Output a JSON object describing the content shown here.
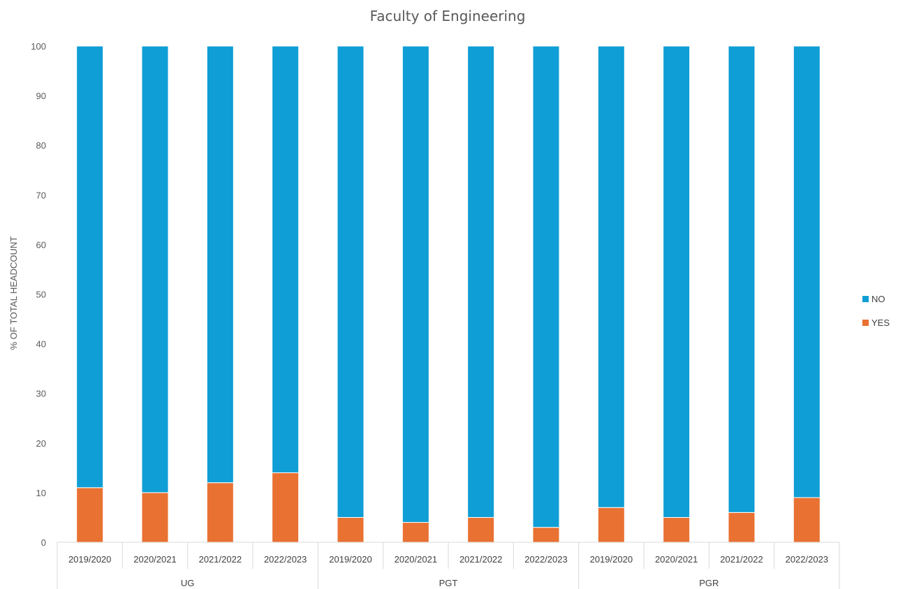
{
  "chart_data": {
    "type": "bar",
    "stacked": true,
    "title": "Faculty of Engineering",
    "xlabel": "",
    "ylabel": "% OF TOTAL HEADCOUNT",
    "ylim": [
      0,
      100
    ],
    "yticks": [
      "0",
      "10",
      "20",
      "30",
      "40",
      "50",
      "60",
      "70",
      "80",
      "90",
      "100"
    ],
    "grid": false,
    "legend_position": "right",
    "groups": [
      {
        "label": "UG",
        "categories": [
          "2019/2020",
          "2020/2021",
          "2021/2022",
          "2022/2023"
        ]
      },
      {
        "label": "PGT",
        "categories": [
          "2019/2020",
          "2020/2021",
          "2021/2022",
          "2022/2023"
        ]
      },
      {
        "label": "PGR",
        "categories": [
          "2019/2020",
          "2020/2021",
          "2021/2022",
          "2022/2023"
        ]
      }
    ],
    "series": [
      {
        "name": "YES",
        "color": "#E97132",
        "values": [
          11,
          10,
          12,
          14,
          5,
          4,
          5,
          3,
          7,
          5,
          6,
          9
        ]
      },
      {
        "name": "NO",
        "color": "#0F9ED5",
        "values": [
          89,
          90,
          88,
          86,
          95,
          96,
          95,
          97,
          93,
          95,
          94,
          91
        ]
      }
    ],
    "legend": [
      "NO",
      "YES"
    ]
  }
}
